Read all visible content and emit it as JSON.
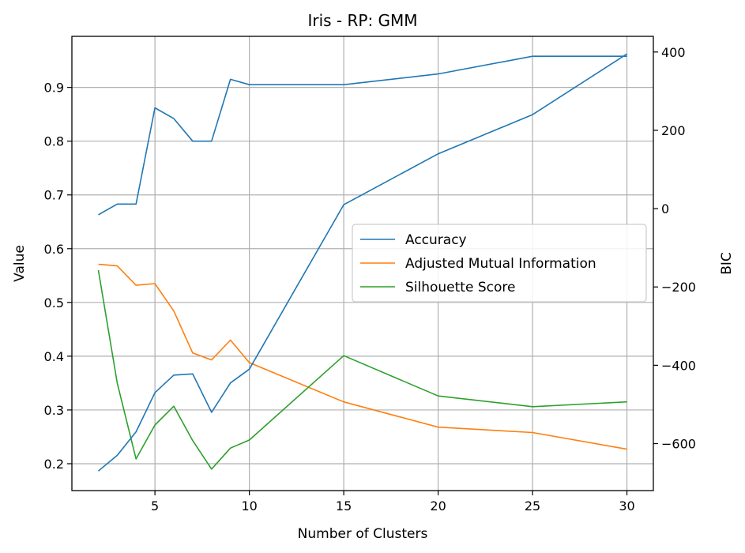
{
  "chart_data": {
    "type": "line",
    "title": "Iris - RP: GMM",
    "xlabel": "Number of Clusters",
    "ylabel": "Value",
    "y2label": "BIC",
    "grid": true,
    "legend_position": "center-right",
    "xlim": [
      0.6,
      31.4
    ],
    "ylim": [
      0.15,
      0.995
    ],
    "y2lim": [
      -720,
      440
    ],
    "xticks": [
      "5",
      "10",
      "15",
      "20",
      "25",
      "30"
    ],
    "yticks": [
      "0.2",
      "0.3",
      "0.4",
      "0.5",
      "0.6",
      "0.7",
      "0.8",
      "0.9"
    ],
    "y2ticks": [
      "400",
      "200",
      "0",
      "−200",
      "−400",
      "−600"
    ],
    "x": [
      2,
      3,
      4,
      5,
      6,
      7,
      8,
      9,
      10,
      15,
      20,
      25,
      30
    ],
    "series": [
      {
        "name": "Accuracy",
        "axis": "left",
        "color": "#1f77b4",
        "values": [
          0.663,
          0.683,
          0.683,
          0.862,
          0.842,
          0.8,
          0.8,
          0.915,
          0.905,
          0.905,
          0.925,
          0.958,
          0.958
        ]
      },
      {
        "name": "Adjusted Mutual Information",
        "axis": "left",
        "color": "#ff7f0e",
        "values": [
          0.571,
          0.568,
          0.532,
          0.535,
          0.484,
          0.406,
          0.393,
          0.43,
          0.388,
          0.315,
          0.268,
          0.258,
          0.227
        ]
      },
      {
        "name": "Silhouette Score",
        "axis": "left",
        "color": "#2ca02c",
        "values": [
          0.56,
          0.35,
          0.209,
          0.272,
          0.307,
          0.243,
          0.19,
          0.229,
          0.244,
          0.401,
          0.326,
          0.306,
          0.315
        ]
      },
      {
        "axis": "right",
        "color": "#1f77b4",
        "values": [
          -670,
          -630,
          -570,
          -470,
          -425,
          -422,
          -520,
          -445,
          -410,
          10,
          140,
          240,
          395
        ]
      }
    ]
  }
}
